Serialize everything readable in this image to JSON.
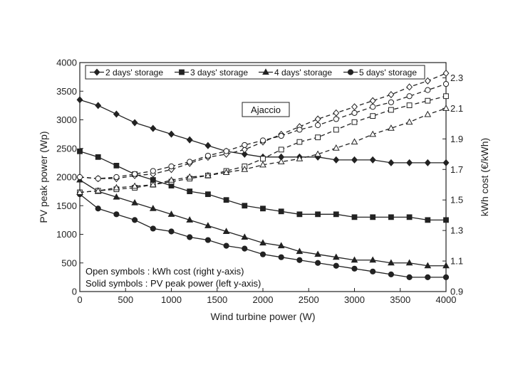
{
  "chart_data": {
    "type": "line",
    "xlabel": "Wind turbine power (W)",
    "ylabel_left": "PV peak power (Wp)",
    "ylabel_right": "kWh cost (€/kWh)",
    "xlim": [
      0,
      4000
    ],
    "ylim_left": [
      0,
      4000
    ],
    "ylim_right": [
      0.9,
      2.4
    ],
    "x_ticks": [
      "0",
      "500",
      "1000",
      "1500",
      "2000",
      "2500",
      "3000",
      "3500",
      "4000"
    ],
    "y_left_ticks": [
      "0",
      "500",
      "1000",
      "1500",
      "2000",
      "2500",
      "3000",
      "3500",
      "4000"
    ],
    "y_right_ticks": [
      "0.9",
      "1.1",
      "1.3",
      "1.5",
      "1.7",
      "1.9",
      "2.1",
      "2.3"
    ],
    "annotation": "Ajaccio",
    "notes": [
      "Open symbols : kWh cost (right y-axis)",
      "Solid symbols : PV peak power (left y-axis)"
    ],
    "grid": false,
    "legend_position": "top",
    "x": [
      0,
      200,
      400,
      600,
      800,
      1000,
      1200,
      1400,
      1600,
      1800,
      2000,
      2200,
      2400,
      2600,
      2800,
      3000,
      3200,
      3400,
      3600,
      3800,
      4000
    ],
    "series": [
      {
        "name": "2 days' storage",
        "marker": "diamond",
        "axis": "left",
        "values": [
          3350,
          3250,
          3100,
          2950,
          2850,
          2750,
          2650,
          2550,
          2450,
          2400,
          2350,
          2350,
          2350,
          2350,
          2300,
          2300,
          2300,
          2250,
          2250,
          2250,
          2250
        ]
      },
      {
        "name": "3 days' storage",
        "marker": "square",
        "axis": "left",
        "values": [
          2450,
          2350,
          2200,
          2050,
          1950,
          1850,
          1750,
          1700,
          1600,
          1500,
          1450,
          1400,
          1350,
          1350,
          1350,
          1300,
          1300,
          1300,
          1300,
          1250,
          1250
        ]
      },
      {
        "name": "4 days' storage",
        "marker": "triangle",
        "axis": "left",
        "values": [
          1950,
          1750,
          1650,
          1550,
          1450,
          1350,
          1250,
          1150,
          1050,
          950,
          850,
          800,
          700,
          650,
          600,
          550,
          550,
          500,
          500,
          450,
          450
        ]
      },
      {
        "name": "5 days' storage",
        "marker": "circle",
        "axis": "left",
        "values": [
          1700,
          1450,
          1350,
          1250,
          1100,
          1050,
          950,
          900,
          800,
          750,
          650,
          600,
          550,
          500,
          450,
          400,
          350,
          300,
          250,
          250,
          250
        ]
      },
      {
        "name": "2 days' storage",
        "marker": "diamond",
        "axis": "right",
        "open": true,
        "values": [
          1.65,
          1.64,
          1.64,
          1.66,
          1.67,
          1.7,
          1.74,
          1.78,
          1.8,
          1.83,
          1.88,
          1.93,
          1.98,
          2.03,
          2.07,
          2.11,
          2.15,
          2.19,
          2.24,
          2.28,
          2.33
        ]
      },
      {
        "name": "3 days' storage",
        "marker": "square",
        "axis": "right",
        "open": true,
        "values": [
          1.55,
          1.56,
          1.57,
          1.58,
          1.6,
          1.62,
          1.64,
          1.66,
          1.69,
          1.72,
          1.77,
          1.83,
          1.88,
          1.91,
          1.96,
          2.01,
          2.05,
          2.09,
          2.12,
          2.15,
          2.18
        ]
      },
      {
        "name": "4 days' storage",
        "marker": "triangle",
        "axis": "right",
        "open": true,
        "values": [
          1.55,
          1.56,
          1.58,
          1.59,
          1.6,
          1.63,
          1.65,
          1.66,
          1.68,
          1.7,
          1.73,
          1.75,
          1.77,
          1.8,
          1.84,
          1.88,
          1.93,
          1.97,
          2.01,
          2.06,
          2.1
        ]
      },
      {
        "name": "5 days' storage",
        "marker": "circle",
        "axis": "right",
        "open": true,
        "values": [
          1.65,
          1.64,
          1.65,
          1.67,
          1.69,
          1.72,
          1.75,
          1.79,
          1.82,
          1.86,
          1.89,
          1.92,
          1.96,
          1.99,
          2.03,
          2.07,
          2.11,
          2.14,
          2.18,
          2.22,
          2.26
        ]
      }
    ],
    "colors": {
      "ink": "#222222",
      "open_fill": "#ffffff"
    }
  }
}
